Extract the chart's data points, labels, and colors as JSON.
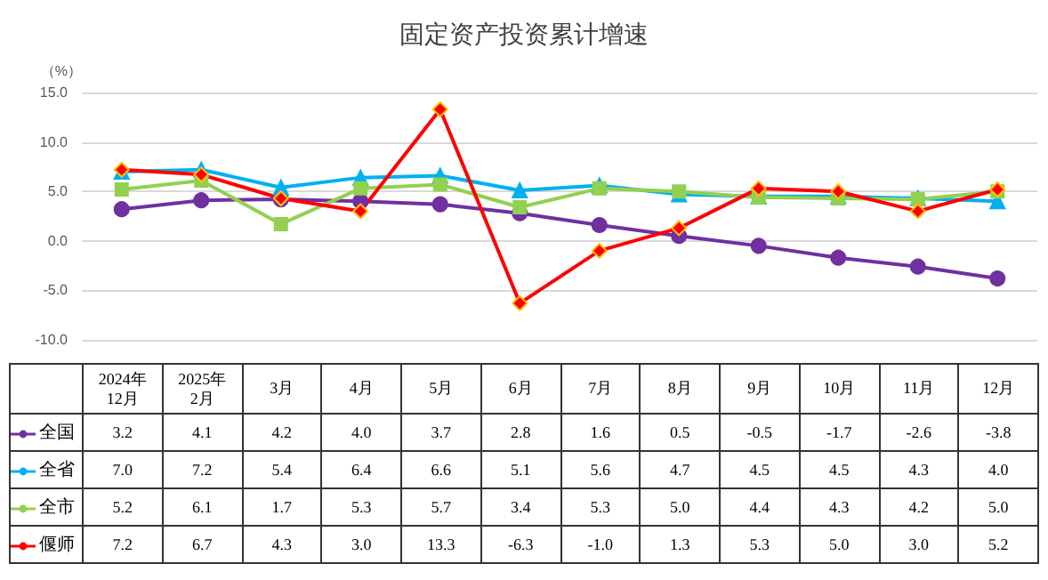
{
  "chart_data": {
    "type": "line",
    "title": "固定资产投资累计增速",
    "ylabel": "（%）",
    "categories": [
      "2024年\n12月",
      "2025年\n2月",
      "3月",
      "4月",
      "5月",
      "6月",
      "7月",
      "8月",
      "9月",
      "10月",
      "11月",
      "12月"
    ],
    "series": [
      {
        "name": "全国",
        "color": "#7030a0",
        "marker": "circle",
        "values": [
          3.2,
          4.1,
          4.2,
          4.0,
          3.7,
          2.8,
          1.6,
          0.5,
          -0.5,
          -1.7,
          -2.6,
          -3.8
        ],
        "value_labels": [
          "3.2",
          "4.1",
          "4.2",
          "4.0",
          "3.7",
          "2.8",
          "1.6",
          "0.5",
          "-0.5",
          "-1.7",
          "-2.6",
          "-3.8"
        ]
      },
      {
        "name": "全省",
        "color": "#00b0f0",
        "marker": "triangle",
        "values": [
          7.0,
          7.2,
          5.4,
          6.4,
          6.6,
          5.1,
          5.6,
          4.7,
          4.5,
          4.5,
          4.3,
          4.0
        ],
        "value_labels": [
          "7.0",
          "7.2",
          "5.4",
          "6.4",
          "6.6",
          "5.1",
          "5.6",
          "4.7",
          "4.5",
          "4.5",
          "4.3",
          "4.0"
        ]
      },
      {
        "name": "全市",
        "color": "#92d050",
        "marker": "square",
        "values": [
          5.2,
          6.1,
          1.7,
          5.3,
          5.7,
          3.4,
          5.3,
          5.0,
          4.4,
          4.3,
          4.2,
          5.0
        ],
        "value_labels": [
          "5.2",
          "6.1",
          "1.7",
          "5.3",
          "5.7",
          "3.4",
          "5.3",
          "5.0",
          "4.4",
          "4.3",
          "4.2",
          "5.0"
        ]
      },
      {
        "name": "偃师",
        "color": "#ff0000",
        "marker": "diamond",
        "values": [
          7.2,
          6.7,
          4.3,
          3.0,
          13.3,
          -6.3,
          -1.0,
          1.3,
          5.3,
          5.0,
          3.0,
          5.2
        ],
        "value_labels": [
          "7.2",
          "6.7",
          "4.3",
          "3.0",
          "13.3",
          "-6.3",
          "-1.0",
          "1.3",
          "5.3",
          "5.0",
          "3.0",
          "5.2"
        ]
      }
    ],
    "ylim": [
      -10,
      15
    ],
    "yticks": [
      {
        "value": -10,
        "label": "-10.0"
      },
      {
        "value": -5,
        "label": "-5.0"
      },
      {
        "value": 0,
        "label": "0.0"
      },
      {
        "value": 5,
        "label": "5.0"
      },
      {
        "value": 10,
        "label": "10.0"
      },
      {
        "value": 15,
        "label": "15.0"
      }
    ],
    "grid": "y",
    "legend": "bottom left",
    "line_style": "solid"
  }
}
